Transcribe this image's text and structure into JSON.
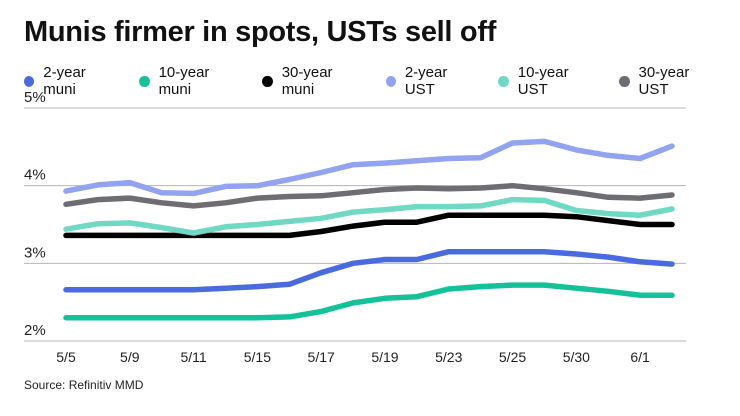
{
  "chart_data": {
    "type": "line",
    "title": "Munis firmer in spots, USTs sell off",
    "xlabel": "",
    "ylabel": "",
    "ylim": [
      2,
      5
    ],
    "yticks": [
      "2%",
      "3%",
      "4%",
      "5%"
    ],
    "ytick_values": [
      2,
      3,
      4,
      5
    ],
    "grid": true,
    "legend_position": "top",
    "x_tick_labels": [
      "5/5",
      "5/9",
      "5/11",
      "5/15",
      "5/17",
      "5/19",
      "5/23",
      "5/25",
      "5/30",
      "6/1"
    ],
    "x_tick_indices": [
      0,
      2,
      4,
      6,
      8,
      10,
      12,
      14,
      16,
      18
    ],
    "num_points": 20,
    "series": [
      {
        "name": "2-year muni",
        "color": "#4a6be0",
        "values": [
          2.66,
          2.66,
          2.66,
          2.66,
          2.66,
          2.68,
          2.7,
          2.73,
          2.88,
          3.0,
          3.05,
          3.05,
          3.15,
          3.15,
          3.15,
          3.15,
          3.12,
          3.08,
          3.02,
          2.99
        ]
      },
      {
        "name": "10-year muni",
        "color": "#14c29a",
        "values": [
          2.3,
          2.3,
          2.3,
          2.3,
          2.3,
          2.3,
          2.3,
          2.31,
          2.38,
          2.49,
          2.55,
          2.57,
          2.67,
          2.7,
          2.72,
          2.72,
          2.68,
          2.64,
          2.59,
          2.59
        ]
      },
      {
        "name": "30-year muni",
        "color": "#000000",
        "values": [
          3.36,
          3.36,
          3.36,
          3.36,
          3.36,
          3.36,
          3.36,
          3.36,
          3.41,
          3.48,
          3.53,
          3.53,
          3.62,
          3.62,
          3.62,
          3.62,
          3.6,
          3.55,
          3.5,
          3.5
        ]
      },
      {
        "name": "2-year UST",
        "color": "#92a3ef",
        "values": [
          3.93,
          4.01,
          4.04,
          3.91,
          3.9,
          3.99,
          4.0,
          4.08,
          4.17,
          4.27,
          4.29,
          4.32,
          4.35,
          4.36,
          4.55,
          4.57,
          4.46,
          4.39,
          4.35,
          4.51
        ]
      },
      {
        "name": "10-year UST",
        "color": "#6fd9c3",
        "values": [
          3.44,
          3.51,
          3.52,
          3.46,
          3.39,
          3.47,
          3.5,
          3.54,
          3.58,
          3.66,
          3.69,
          3.73,
          3.73,
          3.74,
          3.82,
          3.81,
          3.68,
          3.64,
          3.62,
          3.7
        ]
      },
      {
        "name": "30-year UST",
        "color": "#6e6e72",
        "values": [
          3.76,
          3.82,
          3.84,
          3.78,
          3.74,
          3.78,
          3.84,
          3.86,
          3.87,
          3.91,
          3.95,
          3.97,
          3.96,
          3.97,
          4.0,
          3.96,
          3.91,
          3.85,
          3.84,
          3.88
        ]
      }
    ]
  },
  "source": "Source: Refinitiv MMD"
}
